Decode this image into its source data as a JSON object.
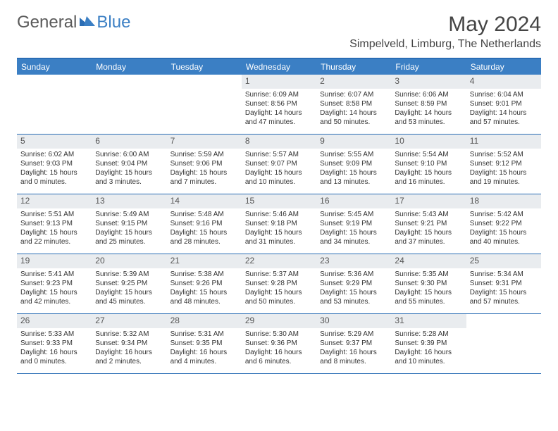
{
  "brand": {
    "word1": "General",
    "word2": "Blue"
  },
  "title": "May 2024",
  "location": "Simpelveld, Limburg, The Netherlands",
  "colors": {
    "header_bg": "#3b7fc4",
    "border": "#2a6db5",
    "daynum_bg": "#e9ecef",
    "text": "#333333",
    "title_text": "#444444",
    "logo_gray": "#5a5a5a"
  },
  "day_names": [
    "Sunday",
    "Monday",
    "Tuesday",
    "Wednesday",
    "Thursday",
    "Friday",
    "Saturday"
  ],
  "weeks": [
    [
      {
        "n": "",
        "sr": "",
        "ss": "",
        "dl": ""
      },
      {
        "n": "",
        "sr": "",
        "ss": "",
        "dl": ""
      },
      {
        "n": "",
        "sr": "",
        "ss": "",
        "dl": ""
      },
      {
        "n": "1",
        "sr": "Sunrise: 6:09 AM",
        "ss": "Sunset: 8:56 PM",
        "dl": "Daylight: 14 hours and 47 minutes."
      },
      {
        "n": "2",
        "sr": "Sunrise: 6:07 AM",
        "ss": "Sunset: 8:58 PM",
        "dl": "Daylight: 14 hours and 50 minutes."
      },
      {
        "n": "3",
        "sr": "Sunrise: 6:06 AM",
        "ss": "Sunset: 8:59 PM",
        "dl": "Daylight: 14 hours and 53 minutes."
      },
      {
        "n": "4",
        "sr": "Sunrise: 6:04 AM",
        "ss": "Sunset: 9:01 PM",
        "dl": "Daylight: 14 hours and 57 minutes."
      }
    ],
    [
      {
        "n": "5",
        "sr": "Sunrise: 6:02 AM",
        "ss": "Sunset: 9:03 PM",
        "dl": "Daylight: 15 hours and 0 minutes."
      },
      {
        "n": "6",
        "sr": "Sunrise: 6:00 AM",
        "ss": "Sunset: 9:04 PM",
        "dl": "Daylight: 15 hours and 3 minutes."
      },
      {
        "n": "7",
        "sr": "Sunrise: 5:59 AM",
        "ss": "Sunset: 9:06 PM",
        "dl": "Daylight: 15 hours and 7 minutes."
      },
      {
        "n": "8",
        "sr": "Sunrise: 5:57 AM",
        "ss": "Sunset: 9:07 PM",
        "dl": "Daylight: 15 hours and 10 minutes."
      },
      {
        "n": "9",
        "sr": "Sunrise: 5:55 AM",
        "ss": "Sunset: 9:09 PM",
        "dl": "Daylight: 15 hours and 13 minutes."
      },
      {
        "n": "10",
        "sr": "Sunrise: 5:54 AM",
        "ss": "Sunset: 9:10 PM",
        "dl": "Daylight: 15 hours and 16 minutes."
      },
      {
        "n": "11",
        "sr": "Sunrise: 5:52 AM",
        "ss": "Sunset: 9:12 PM",
        "dl": "Daylight: 15 hours and 19 minutes."
      }
    ],
    [
      {
        "n": "12",
        "sr": "Sunrise: 5:51 AM",
        "ss": "Sunset: 9:13 PM",
        "dl": "Daylight: 15 hours and 22 minutes."
      },
      {
        "n": "13",
        "sr": "Sunrise: 5:49 AM",
        "ss": "Sunset: 9:15 PM",
        "dl": "Daylight: 15 hours and 25 minutes."
      },
      {
        "n": "14",
        "sr": "Sunrise: 5:48 AM",
        "ss": "Sunset: 9:16 PM",
        "dl": "Daylight: 15 hours and 28 minutes."
      },
      {
        "n": "15",
        "sr": "Sunrise: 5:46 AM",
        "ss": "Sunset: 9:18 PM",
        "dl": "Daylight: 15 hours and 31 minutes."
      },
      {
        "n": "16",
        "sr": "Sunrise: 5:45 AM",
        "ss": "Sunset: 9:19 PM",
        "dl": "Daylight: 15 hours and 34 minutes."
      },
      {
        "n": "17",
        "sr": "Sunrise: 5:43 AM",
        "ss": "Sunset: 9:21 PM",
        "dl": "Daylight: 15 hours and 37 minutes."
      },
      {
        "n": "18",
        "sr": "Sunrise: 5:42 AM",
        "ss": "Sunset: 9:22 PM",
        "dl": "Daylight: 15 hours and 40 minutes."
      }
    ],
    [
      {
        "n": "19",
        "sr": "Sunrise: 5:41 AM",
        "ss": "Sunset: 9:23 PM",
        "dl": "Daylight: 15 hours and 42 minutes."
      },
      {
        "n": "20",
        "sr": "Sunrise: 5:39 AM",
        "ss": "Sunset: 9:25 PM",
        "dl": "Daylight: 15 hours and 45 minutes."
      },
      {
        "n": "21",
        "sr": "Sunrise: 5:38 AM",
        "ss": "Sunset: 9:26 PM",
        "dl": "Daylight: 15 hours and 48 minutes."
      },
      {
        "n": "22",
        "sr": "Sunrise: 5:37 AM",
        "ss": "Sunset: 9:28 PM",
        "dl": "Daylight: 15 hours and 50 minutes."
      },
      {
        "n": "23",
        "sr": "Sunrise: 5:36 AM",
        "ss": "Sunset: 9:29 PM",
        "dl": "Daylight: 15 hours and 53 minutes."
      },
      {
        "n": "24",
        "sr": "Sunrise: 5:35 AM",
        "ss": "Sunset: 9:30 PM",
        "dl": "Daylight: 15 hours and 55 minutes."
      },
      {
        "n": "25",
        "sr": "Sunrise: 5:34 AM",
        "ss": "Sunset: 9:31 PM",
        "dl": "Daylight: 15 hours and 57 minutes."
      }
    ],
    [
      {
        "n": "26",
        "sr": "Sunrise: 5:33 AM",
        "ss": "Sunset: 9:33 PM",
        "dl": "Daylight: 16 hours and 0 minutes."
      },
      {
        "n": "27",
        "sr": "Sunrise: 5:32 AM",
        "ss": "Sunset: 9:34 PM",
        "dl": "Daylight: 16 hours and 2 minutes."
      },
      {
        "n": "28",
        "sr": "Sunrise: 5:31 AM",
        "ss": "Sunset: 9:35 PM",
        "dl": "Daylight: 16 hours and 4 minutes."
      },
      {
        "n": "29",
        "sr": "Sunrise: 5:30 AM",
        "ss": "Sunset: 9:36 PM",
        "dl": "Daylight: 16 hours and 6 minutes."
      },
      {
        "n": "30",
        "sr": "Sunrise: 5:29 AM",
        "ss": "Sunset: 9:37 PM",
        "dl": "Daylight: 16 hours and 8 minutes."
      },
      {
        "n": "31",
        "sr": "Sunrise: 5:28 AM",
        "ss": "Sunset: 9:39 PM",
        "dl": "Daylight: 16 hours and 10 minutes."
      },
      {
        "n": "",
        "sr": "",
        "ss": "",
        "dl": ""
      }
    ]
  ]
}
